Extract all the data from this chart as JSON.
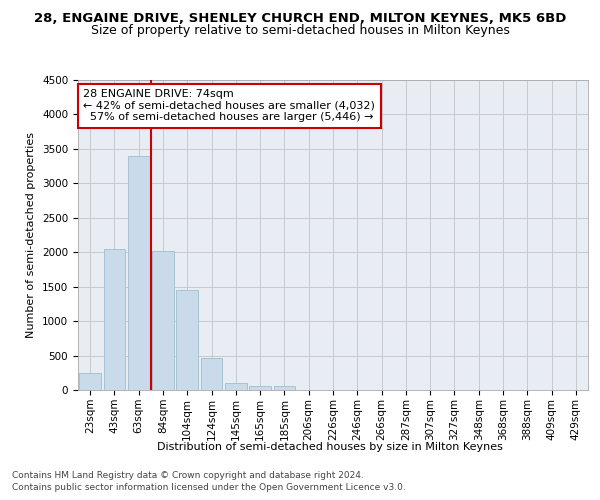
{
  "title": "28, ENGAINE DRIVE, SHENLEY CHURCH END, MILTON KEYNES, MK5 6BD",
  "subtitle": "Size of property relative to semi-detached houses in Milton Keynes",
  "xlabel": "Distribution of semi-detached houses by size in Milton Keynes",
  "ylabel": "Number of semi-detached properties",
  "categories": [
    "23sqm",
    "43sqm",
    "63sqm",
    "84sqm",
    "104sqm",
    "124sqm",
    "145sqm",
    "165sqm",
    "185sqm",
    "206sqm",
    "226sqm",
    "246sqm",
    "266sqm",
    "287sqm",
    "307sqm",
    "327sqm",
    "348sqm",
    "368sqm",
    "388sqm",
    "409sqm",
    "429sqm"
  ],
  "values": [
    250,
    2050,
    3400,
    2020,
    1450,
    470,
    100,
    62,
    60,
    0,
    0,
    0,
    0,
    0,
    0,
    0,
    0,
    0,
    0,
    0,
    0
  ],
  "bar_color": "#c9daea",
  "bar_edge_color": "#a0becc",
  "vline_color": "#cc0000",
  "vline_x": 2.52,
  "pct_smaller": 42,
  "pct_larger": 57,
  "n_smaller": 4032,
  "n_larger": 5446,
  "annotation_box_color": "#ffffff",
  "annotation_box_edge": "#cc0000",
  "footer_line1": "Contains HM Land Registry data © Crown copyright and database right 2024.",
  "footer_line2": "Contains public sector information licensed under the Open Government Licence v3.0.",
  "background_color": "#ffffff",
  "plot_bg_color": "#e8edf4",
  "grid_color": "#c8c8d0",
  "ylim": [
    0,
    4500
  ],
  "yticks": [
    0,
    500,
    1000,
    1500,
    2000,
    2500,
    3000,
    3500,
    4000,
    4500
  ],
  "title_fontsize": 9.5,
  "subtitle_fontsize": 9,
  "axis_label_fontsize": 8,
  "tick_fontsize": 7.5,
  "annotation_fontsize": 8,
  "footer_fontsize": 6.5
}
